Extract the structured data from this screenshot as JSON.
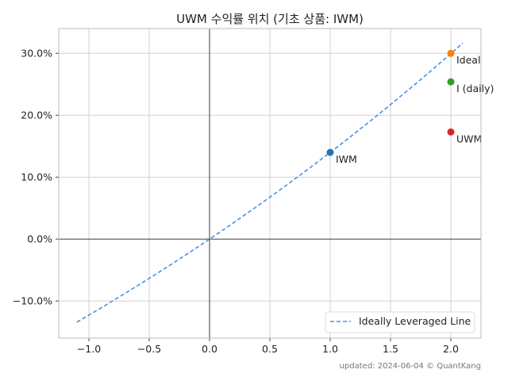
{
  "chart_data": {
    "type": "scatter",
    "title": "UWM 수익률 위치 (기초 상품: IWM)",
    "xlim": [
      -1.25,
      2.25
    ],
    "ylim": [
      -0.16,
      0.34
    ],
    "x_ticks": [
      -1.0,
      -0.5,
      0.0,
      0.5,
      1.0,
      1.5,
      2.0
    ],
    "x_tick_labels": [
      "−1.0",
      "−0.5",
      "0.0",
      "0.5",
      "1.0",
      "1.5",
      "2.0"
    ],
    "y_ticks": [
      -0.1,
      0.0,
      0.1,
      0.2,
      0.3
    ],
    "y_tick_labels": [
      "−10.0%",
      "0.0%",
      "10.0%",
      "20.0%",
      "30.0%"
    ],
    "grid": true,
    "legend_position": "bottom-right",
    "line": {
      "name": "Ideally Leveraged Line",
      "style": "dashed",
      "color": "#4a90e2",
      "base_return": 0.14,
      "x_range": [
        -1.1,
        2.1
      ]
    },
    "points": [
      {
        "label": "IWM",
        "x": 1.0,
        "y": 0.14,
        "color": "#1f77b4"
      },
      {
        "label": "Ideal",
        "x": 2.0,
        "y": 0.3,
        "color": "#ff7f0e"
      },
      {
        "label": "I (daily)",
        "x": 2.0,
        "y": 0.254,
        "color": "#2ca02c"
      },
      {
        "label": "UWM",
        "x": 2.0,
        "y": 0.173,
        "color": "#d62728"
      }
    ]
  },
  "footnote": "updated: 2024-06-04 © QuantKang"
}
